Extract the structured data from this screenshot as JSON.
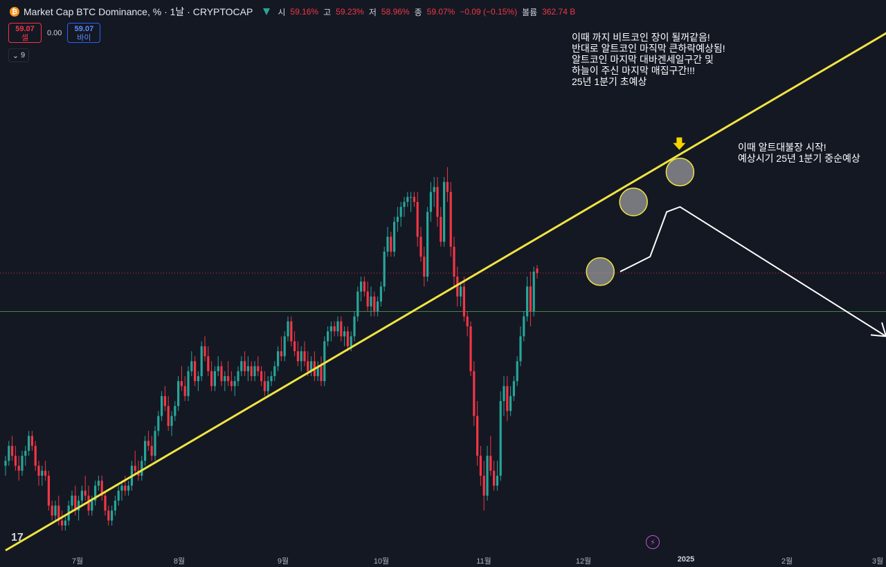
{
  "header": {
    "coin_symbol": "₿",
    "title": "Market Cap BTC Dominance, % · 1날 · CRYPTOCAP",
    "ohlc": [
      {
        "label": "시",
        "value": "59.16%"
      },
      {
        "label": "고",
        "value": "59.23%"
      },
      {
        "label": "저",
        "value": "58.96%"
      },
      {
        "label": "종",
        "value": "59.07%"
      },
      {
        "label": "",
        "value": "−0.09 (−0.15%)"
      },
      {
        "label": "볼륨",
        "value": "362.74 B"
      }
    ]
  },
  "trade": {
    "sell_price": "59.07",
    "sell_label": "셀",
    "spread": "0.00",
    "buy_price": "59.07",
    "buy_label": "바이"
  },
  "indicators": {
    "count": "9"
  },
  "annotations": {
    "top_note": [
      "이때 까지 비트코인 장이 될꺼같음!",
      "반대로 알트코인 마직막 큰하락예상됨!",
      "알트코인 마지막 대바겐세일구간 및",
      "하늘이 주신 마지막 매집구간!!!",
      "25년 1분기 초예상"
    ],
    "right_note": [
      "이때 알트대불장 시작!",
      "예상시기 25년 1분기 중순예상"
    ]
  },
  "colors": {
    "up": "#26a69a",
    "down": "#f23645",
    "trendline": "#f0e442",
    "background": "#141823",
    "hline": "#4caf50",
    "price_line": "#f23645"
  },
  "chart_data": {
    "type": "candlestick",
    "title": "Market Cap BTC Dominance",
    "x_tick_labels": [
      "7월",
      "8월",
      "9월",
      "10월",
      "11월",
      "12월",
      "2025",
      "2월",
      "3월"
    ],
    "y_range_estimated": [
      52.9,
      61.2
    ],
    "current_close": 59.07,
    "horizontal_line": 58.3,
    "trendline": {
      "from": [
        "2024-06-01",
        53.5
      ],
      "to": [
        "2025-03-01",
        64.2
      ]
    },
    "projection_path": [
      [
        "2024-12-03",
        59.1
      ],
      [
        "2024-12-12",
        59.4
      ],
      [
        "2024-12-17",
        60.3
      ],
      [
        "2024-12-21",
        60.4
      ],
      [
        "2025-02-21",
        57.8
      ]
    ],
    "highlight_circles": [
      [
        "2024-11-27",
        59.1
      ],
      [
        "2024-12-07",
        60.5
      ],
      [
        "2024-12-21",
        61.1
      ]
    ],
    "candles": [
      [
        55.2,
        55.4,
        55.0,
        55.3
      ],
      [
        55.3,
        55.7,
        55.2,
        55.6
      ],
      [
        55.6,
        55.8,
        55.3,
        55.4
      ],
      [
        55.4,
        55.6,
        55.1,
        55.2
      ],
      [
        55.2,
        55.4,
        54.9,
        55.1
      ],
      [
        55.1,
        55.5,
        55.0,
        55.4
      ],
      [
        55.4,
        55.6,
        55.2,
        55.5
      ],
      [
        55.5,
        55.9,
        55.4,
        55.8
      ],
      [
        55.8,
        55.9,
        55.5,
        55.6
      ],
      [
        55.6,
        55.7,
        55.1,
        55.2
      ],
      [
        55.2,
        55.3,
        54.8,
        55.0
      ],
      [
        55.0,
        55.2,
        54.8,
        55.1
      ],
      [
        55.1,
        55.3,
        54.9,
        55.0
      ],
      [
        55.0,
        55.1,
        54.3,
        54.4
      ],
      [
        54.4,
        54.5,
        54.1,
        54.2
      ],
      [
        54.2,
        54.5,
        54.1,
        54.4
      ],
      [
        54.4,
        54.6,
        54.0,
        54.1
      ],
      [
        54.1,
        54.3,
        53.9,
        54.0
      ],
      [
        54.0,
        54.2,
        53.9,
        54.1
      ],
      [
        54.1,
        54.5,
        54.0,
        54.4
      ],
      [
        54.4,
        54.7,
        54.3,
        54.6
      ],
      [
        54.6,
        54.8,
        54.2,
        54.3
      ],
      [
        54.3,
        54.6,
        54.1,
        54.5
      ],
      [
        54.5,
        54.8,
        54.4,
        54.7
      ],
      [
        54.7,
        55.0,
        54.5,
        54.6
      ],
      [
        54.6,
        54.8,
        54.2,
        54.3
      ],
      [
        54.3,
        54.6,
        54.2,
        54.5
      ],
      [
        54.5,
        54.9,
        54.4,
        54.8
      ],
      [
        54.8,
        55.0,
        54.7,
        54.9
      ],
      [
        54.9,
        55.0,
        54.5,
        54.6
      ],
      [
        54.6,
        54.7,
        54.2,
        54.3
      ],
      [
        54.3,
        54.4,
        54.0,
        54.1
      ],
      [
        54.1,
        54.4,
        54.0,
        54.3
      ],
      [
        54.3,
        54.6,
        54.2,
        54.5
      ],
      [
        54.5,
        54.8,
        54.4,
        54.7
      ],
      [
        54.7,
        54.9,
        54.5,
        54.8
      ],
      [
        54.8,
        55.0,
        54.6,
        54.7
      ],
      [
        54.7,
        54.9,
        54.6,
        54.8
      ],
      [
        54.8,
        55.3,
        54.7,
        55.2
      ],
      [
        55.2,
        55.5,
        55.0,
        55.1
      ],
      [
        55.1,
        55.3,
        54.9,
        55.0
      ],
      [
        55.0,
        55.4,
        54.9,
        55.3
      ],
      [
        55.3,
        55.8,
        55.2,
        55.7
      ],
      [
        55.7,
        55.9,
        55.5,
        55.6
      ],
      [
        55.6,
        55.8,
        55.3,
        55.4
      ],
      [
        55.4,
        56.0,
        55.3,
        55.9
      ],
      [
        55.9,
        56.3,
        55.8,
        56.2
      ],
      [
        56.2,
        56.7,
        56.1,
        56.6
      ],
      [
        56.6,
        56.8,
        56.3,
        56.4
      ],
      [
        56.4,
        56.6,
        55.9,
        56.0
      ],
      [
        56.0,
        56.3,
        55.8,
        56.2
      ],
      [
        56.2,
        56.5,
        56.1,
        56.4
      ],
      [
        56.4,
        57.0,
        56.3,
        56.9
      ],
      [
        56.9,
        57.2,
        56.7,
        56.8
      ],
      [
        56.8,
        57.0,
        56.5,
        56.6
      ],
      [
        56.6,
        57.2,
        56.5,
        57.1
      ],
      [
        57.1,
        57.5,
        57.0,
        57.3
      ],
      [
        57.3,
        57.4,
        56.8,
        56.9
      ],
      [
        56.9,
        57.1,
        56.7,
        57.0
      ],
      [
        57.0,
        57.7,
        56.9,
        57.6
      ],
      [
        57.6,
        57.8,
        57.3,
        57.4
      ],
      [
        57.4,
        57.6,
        57.0,
        57.1
      ],
      [
        57.1,
        57.3,
        56.7,
        56.8
      ],
      [
        56.8,
        57.2,
        56.7,
        57.1
      ],
      [
        57.1,
        57.4,
        57.0,
        57.2
      ],
      [
        57.2,
        57.3,
        56.8,
        56.9
      ],
      [
        56.9,
        57.1,
        56.7,
        57.0
      ],
      [
        57.0,
        57.3,
        56.8,
        56.9
      ],
      [
        56.9,
        57.1,
        56.7,
        56.8
      ],
      [
        56.8,
        57.0,
        56.6,
        56.9
      ],
      [
        56.9,
        57.2,
        56.8,
        57.1
      ],
      [
        57.1,
        57.4,
        57.0,
        57.3
      ],
      [
        57.3,
        57.5,
        57.0,
        57.1
      ],
      [
        57.1,
        57.4,
        56.9,
        57.2
      ],
      [
        57.2,
        57.3,
        56.9,
        57.0
      ],
      [
        57.0,
        57.3,
        56.9,
        57.2
      ],
      [
        57.2,
        57.4,
        57.0,
        57.1
      ],
      [
        57.1,
        57.2,
        56.8,
        56.9
      ],
      [
        56.9,
        57.1,
        56.6,
        56.7
      ],
      [
        56.7,
        57.0,
        56.6,
        56.9
      ],
      [
        56.9,
        57.1,
        56.8,
        57.0
      ],
      [
        57.0,
        57.3,
        56.9,
        57.2
      ],
      [
        57.2,
        57.6,
        57.1,
        57.5
      ],
      [
        57.5,
        57.8,
        57.3,
        57.4
      ],
      [
        57.4,
        57.9,
        57.3,
        57.8
      ],
      [
        57.8,
        58.2,
        57.7,
        58.1
      ],
      [
        58.1,
        58.2,
        57.6,
        57.7
      ],
      [
        57.7,
        57.9,
        57.4,
        57.5
      ],
      [
        57.5,
        57.7,
        57.2,
        57.3
      ],
      [
        57.3,
        57.6,
        57.1,
        57.5
      ],
      [
        57.5,
        57.7,
        57.2,
        57.3
      ],
      [
        57.3,
        57.5,
        57.0,
        57.1
      ],
      [
        57.1,
        57.4,
        57.0,
        57.3
      ],
      [
        57.3,
        57.5,
        56.9,
        57.0
      ],
      [
        57.0,
        57.3,
        56.9,
        57.2
      ],
      [
        57.2,
        57.4,
        56.8,
        56.9
      ],
      [
        56.9,
        57.8,
        56.8,
        57.7
      ],
      [
        57.7,
        58.0,
        57.6,
        57.9
      ],
      [
        57.9,
        58.1,
        57.7,
        58.0
      ],
      [
        58.0,
        58.1,
        57.8,
        57.9
      ],
      [
        57.9,
        58.2,
        57.8,
        58.1
      ],
      [
        58.1,
        58.2,
        57.7,
        57.8
      ],
      [
        57.8,
        58.0,
        57.6,
        57.9
      ],
      [
        57.9,
        58.0,
        57.5,
        57.6
      ],
      [
        57.6,
        57.9,
        57.5,
        57.8
      ],
      [
        57.8,
        58.3,
        57.7,
        58.2
      ],
      [
        58.2,
        58.8,
        58.1,
        58.7
      ],
      [
        58.7,
        59.0,
        58.5,
        58.9
      ],
      [
        58.9,
        59.0,
        58.6,
        58.7
      ],
      [
        58.7,
        58.9,
        58.3,
        58.4
      ],
      [
        58.4,
        58.8,
        58.2,
        58.6
      ],
      [
        58.6,
        58.7,
        58.2,
        58.3
      ],
      [
        58.3,
        58.6,
        58.2,
        58.5
      ],
      [
        58.5,
        58.9,
        58.4,
        58.8
      ],
      [
        58.8,
        59.6,
        58.7,
        59.5
      ],
      [
        59.5,
        60.0,
        59.4,
        59.8
      ],
      [
        59.8,
        59.9,
        59.4,
        59.5
      ],
      [
        59.5,
        60.2,
        59.4,
        60.1
      ],
      [
        60.1,
        60.4,
        59.9,
        60.2
      ],
      [
        60.2,
        60.5,
        60.0,
        60.4
      ],
      [
        60.4,
        60.6,
        60.2,
        60.5
      ],
      [
        60.5,
        60.7,
        60.4,
        60.6
      ],
      [
        60.6,
        60.7,
        60.3,
        60.6
      ],
      [
        60.6,
        60.7,
        60.4,
        60.5
      ],
      [
        60.5,
        60.7,
        59.6,
        59.8
      ],
      [
        59.8,
        60.0,
        59.3,
        59.4
      ],
      [
        59.4,
        59.6,
        58.8,
        59.0
      ],
      [
        59.0,
        60.4,
        58.9,
        60.3
      ],
      [
        60.3,
        60.9,
        60.1,
        60.7
      ],
      [
        60.7,
        61.0,
        60.4,
        60.8
      ],
      [
        60.8,
        61.0,
        60.0,
        60.2
      ],
      [
        60.2,
        60.4,
        59.6,
        59.7
      ],
      [
        59.7,
        61.0,
        59.6,
        60.9
      ],
      [
        60.9,
        61.2,
        60.5,
        60.7
      ],
      [
        60.7,
        60.9,
        59.4,
        59.6
      ],
      [
        59.6,
        59.8,
        58.8,
        59.0
      ],
      [
        59.0,
        59.2,
        58.4,
        58.6
      ],
      [
        58.6,
        58.9,
        58.4,
        58.8
      ],
      [
        58.8,
        59.0,
        58.1,
        58.2
      ],
      [
        58.2,
        58.3,
        57.8,
        58.0
      ],
      [
        58.0,
        58.1,
        57.0,
        57.1
      ],
      [
        57.1,
        57.3,
        56.0,
        56.2
      ],
      [
        56.2,
        56.5,
        55.2,
        55.4
      ],
      [
        55.4,
        55.6,
        54.8,
        55.0
      ],
      [
        55.0,
        55.3,
        54.3,
        54.6
      ],
      [
        54.6,
        55.6,
        54.5,
        55.4
      ],
      [
        55.4,
        55.8,
        55.0,
        55.1
      ],
      [
        55.1,
        55.3,
        54.7,
        54.8
      ],
      [
        54.8,
        55.3,
        54.7,
        55.0
      ],
      [
        55.0,
        56.7,
        54.9,
        56.5
      ],
      [
        56.5,
        57.0,
        56.2,
        56.8
      ],
      [
        56.8,
        57.0,
        56.1,
        56.3
      ],
      [
        56.3,
        56.8,
        56.2,
        56.6
      ],
      [
        56.6,
        57.0,
        56.5,
        56.9
      ],
      [
        56.9,
        57.4,
        56.8,
        57.3
      ],
      [
        57.3,
        58.0,
        57.2,
        57.8
      ],
      [
        57.8,
        58.3,
        57.7,
        58.2
      ],
      [
        58.2,
        59.0,
        58.1,
        58.8
      ],
      [
        58.8,
        59.1,
        58.0,
        58.3
      ],
      [
        58.3,
        59.2,
        58.2,
        59.1
      ],
      [
        59.16,
        59.23,
        58.96,
        59.07
      ]
    ]
  }
}
